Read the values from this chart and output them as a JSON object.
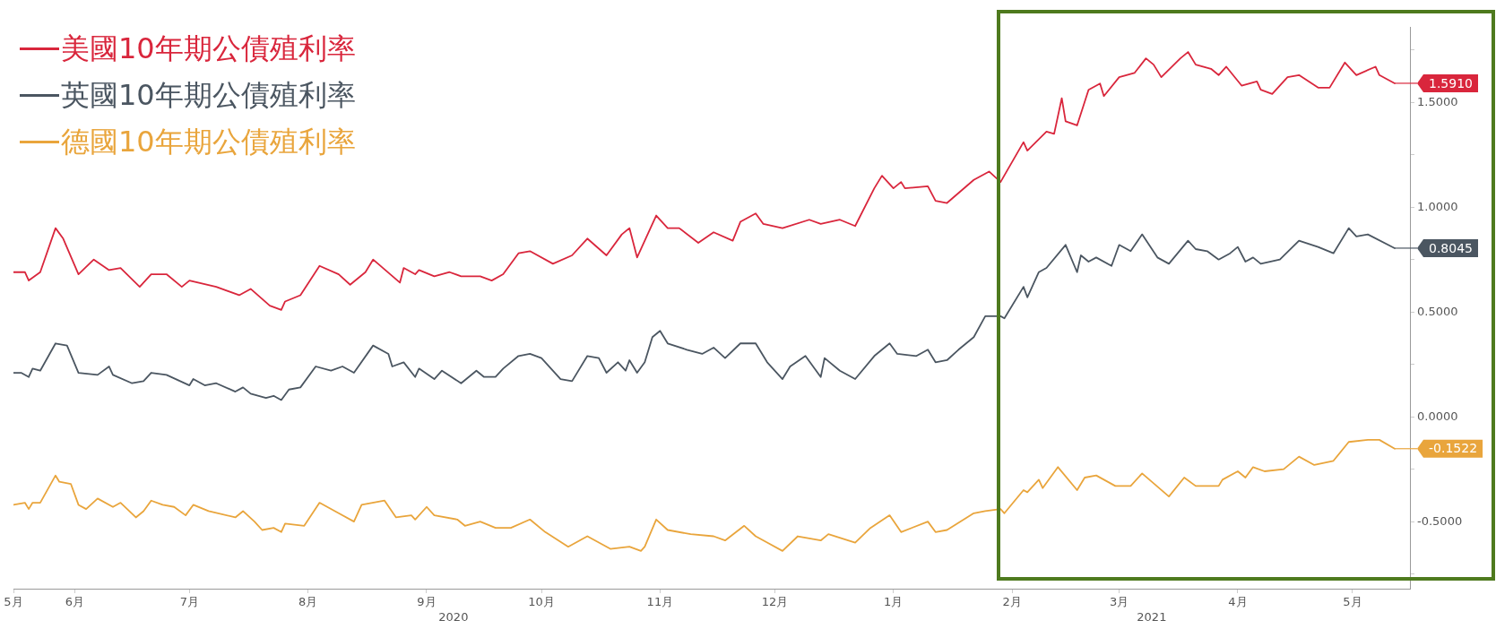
{
  "chart_data": {
    "type": "line",
    "legend": "top left",
    "marker": "none",
    "line_style": "solid",
    "xlim": [
      "2020-05-16",
      "2021-05-16"
    ],
    "xticks": [
      {
        "value": "2020-05-16",
        "label": "5月"
      },
      {
        "value": "2020-06-01",
        "label": "6月"
      },
      {
        "value": "2020-07-01",
        "label": "7月"
      },
      {
        "value": "2020-08-01",
        "label": "8月"
      },
      {
        "value": "2020-09-01",
        "label": "9月"
      },
      {
        "value": "2020-10-01",
        "label": "10月"
      },
      {
        "value": "2020-11-01",
        "label": "11月"
      },
      {
        "value": "2020-12-01",
        "label": "12月"
      },
      {
        "value": "2021-01-01",
        "label": "1月"
      },
      {
        "value": "2021-02-01",
        "label": "2月"
      },
      {
        "value": "2021-03-01",
        "label": "3月"
      },
      {
        "value": "2021-04-01",
        "label": "4月"
      },
      {
        "value": "2021-05-01",
        "label": "5月"
      }
    ],
    "ylim": [
      -0.82,
      1.86
    ],
    "yticks": [
      {
        "value": -0.75,
        "label": null
      },
      {
        "value": -0.5,
        "label": "-0.5000"
      },
      {
        "value": -0.25,
        "label": null
      },
      {
        "value": 0,
        "label": "0.0000"
      },
      {
        "value": 0.25,
        "label": null
      },
      {
        "value": 0.5,
        "label": "0.5000"
      },
      {
        "value": 0.75,
        "label": null
      },
      {
        "value": 1,
        "label": "1.0000"
      },
      {
        "value": 1.25,
        "label": null
      },
      {
        "value": 1.5,
        "label": "1.5000"
      },
      {
        "value": 1.75,
        "label": null
      }
    ],
    "annotations": [
      "2020",
      "2021"
    ],
    "series": [
      {
        "name": "美國10年期公債殖利率",
        "color": "#d9263c",
        "x": [
          "2020-05-16",
          "2020-05-19",
          "2020-05-20",
          "2020-05-23",
          "2020-05-27",
          "2020-05-29",
          "2020-06-02",
          "2020-06-06",
          "2020-06-10",
          "2020-06-13",
          "2020-06-18",
          "2020-06-21",
          "2020-06-25",
          "2020-06-29",
          "2020-07-01",
          "2020-07-08",
          "2020-07-14",
          "2020-07-17",
          "2020-07-22",
          "2020-07-25",
          "2020-07-26",
          "2020-07-30",
          "2020-08-04",
          "2020-08-09",
          "2020-08-12",
          "2020-08-16",
          "2020-08-18",
          "2020-08-25",
          "2020-08-26",
          "2020-08-29",
          "2020-08-30",
          "2020-09-03",
          "2020-09-07",
          "2020-09-10",
          "2020-09-15",
          "2020-09-18",
          "2020-09-21",
          "2020-09-25",
          "2020-09-28",
          "2020-10-04",
          "2020-10-09",
          "2020-10-13",
          "2020-10-18",
          "2020-10-22",
          "2020-10-24",
          "2020-10-26",
          "2020-10-31",
          "2020-11-03",
          "2020-11-06",
          "2020-11-11",
          "2020-11-15",
          "2020-11-20",
          "2020-11-22",
          "2020-11-26",
          "2020-11-28",
          "2020-12-03",
          "2020-12-10",
          "2020-12-13",
          "2020-12-18",
          "2020-12-22",
          "2020-12-27",
          "2020-12-29",
          "2021-01-01",
          "2021-01-03",
          "2021-01-04",
          "2021-01-10",
          "2021-01-12",
          "2021-01-15",
          "2021-01-22",
          "2021-01-26",
          "2021-01-29",
          "2021-02-04",
          "2021-02-05",
          "2021-02-10",
          "2021-02-12",
          "2021-02-14",
          "2021-02-15",
          "2021-02-18",
          "2021-02-21",
          "2021-02-24",
          "2021-02-25",
          "2021-03-01",
          "2021-03-05",
          "2021-03-08",
          "2021-03-10",
          "2021-03-12",
          "2021-03-17",
          "2021-03-19",
          "2021-03-21",
          "2021-03-25",
          "2021-03-27",
          "2021-03-29",
          "2021-04-02",
          "2021-04-06",
          "2021-04-07",
          "2021-04-10",
          "2021-04-14",
          "2021-04-17",
          "2021-04-22",
          "2021-04-25",
          "2021-04-29",
          "2021-05-02",
          "2021-05-07",
          "2021-05-08",
          "2021-05-12"
        ],
        "values": [
          0.69,
          0.69,
          0.65,
          0.69,
          0.9,
          0.85,
          0.68,
          0.75,
          0.7,
          0.71,
          0.62,
          0.68,
          0.68,
          0.62,
          0.65,
          0.62,
          0.58,
          0.61,
          0.53,
          0.51,
          0.55,
          0.58,
          0.72,
          0.68,
          0.63,
          0.69,
          0.75,
          0.64,
          0.71,
          0.68,
          0.7,
          0.67,
          0.69,
          0.67,
          0.67,
          0.65,
          0.68,
          0.78,
          0.79,
          0.73,
          0.77,
          0.85,
          0.77,
          0.87,
          0.9,
          0.76,
          0.96,
          0.9,
          0.9,
          0.83,
          0.88,
          0.84,
          0.93,
          0.97,
          0.92,
          0.9,
          0.94,
          0.92,
          0.94,
          0.91,
          1.09,
          1.15,
          1.09,
          1.12,
          1.09,
          1.1,
          1.03,
          1.02,
          1.13,
          1.17,
          1.12,
          1.31,
          1.27,
          1.36,
          1.35,
          1.52,
          1.41,
          1.39,
          1.56,
          1.59,
          1.53,
          1.62,
          1.64,
          1.71,
          1.68,
          1.62,
          1.71,
          1.74,
          1.68,
          1.66,
          1.63,
          1.67,
          1.58,
          1.6,
          1.56,
          1.54,
          1.62,
          1.63,
          1.57,
          1.57,
          1.69,
          1.63,
          1.67,
          1.63,
          1.591
        ],
        "value_labels": [
          null,
          null,
          null,
          null,
          null,
          null,
          null,
          null,
          null,
          null,
          null,
          null,
          null,
          null,
          null,
          null,
          null,
          null,
          null,
          null,
          null,
          null,
          null,
          null,
          null,
          null,
          null,
          null,
          null,
          null,
          null,
          null,
          null,
          null,
          null,
          null,
          null,
          null,
          null,
          null,
          null,
          null,
          null,
          null,
          null,
          null,
          null,
          null,
          null,
          null,
          null,
          null,
          null,
          null,
          null,
          null,
          null,
          null,
          null,
          null,
          null,
          null,
          null,
          null,
          null,
          null,
          null,
          null,
          null,
          null,
          null,
          null,
          null,
          null,
          null,
          null,
          null,
          null,
          null,
          null,
          null,
          null,
          null,
          null,
          null,
          null,
          null,
          null,
          null,
          null,
          null,
          null,
          null,
          null,
          null,
          null,
          null,
          null,
          null,
          null,
          null,
          null,
          null,
          null,
          "1.5910"
        ]
      },
      {
        "name": "英國10年期公債殖利率",
        "color": "#4b5661",
        "x": [
          "2020-05-16",
          "2020-05-18",
          "2020-05-20",
          "2020-05-21",
          "2020-05-23",
          "2020-05-27",
          "2020-05-30",
          "2020-06-02",
          "2020-06-07",
          "2020-06-10",
          "2020-06-11",
          "2020-06-16",
          "2020-06-19",
          "2020-06-21",
          "2020-06-25",
          "2020-07-01",
          "2020-07-02",
          "2020-07-05",
          "2020-07-08",
          "2020-07-13",
          "2020-07-15",
          "2020-07-17",
          "2020-07-21",
          "2020-07-23",
          "2020-07-25",
          "2020-07-27",
          "2020-07-30",
          "2020-08-03",
          "2020-08-07",
          "2020-08-10",
          "2020-08-13",
          "2020-08-18",
          "2020-08-22",
          "2020-08-23",
          "2020-08-26",
          "2020-08-29",
          "2020-08-30",
          "2020-09-03",
          "2020-09-05",
          "2020-09-10",
          "2020-09-14",
          "2020-09-16",
          "2020-09-19",
          "2020-09-21",
          "2020-09-25",
          "2020-09-28",
          "2020-10-01",
          "2020-10-06",
          "2020-10-09",
          "2020-10-13",
          "2020-10-16",
          "2020-10-18",
          "2020-10-21",
          "2020-10-23",
          "2020-10-24",
          "2020-10-26",
          "2020-10-28",
          "2020-10-30",
          "2020-11-01",
          "2020-11-03",
          "2020-11-08",
          "2020-11-12",
          "2020-11-15",
          "2020-11-18",
          "2020-11-22",
          "2020-11-26",
          "2020-11-29",
          "2020-12-03",
          "2020-12-05",
          "2020-12-09",
          "2020-12-13",
          "2020-12-14",
          "2020-12-18",
          "2020-12-22",
          "2020-12-27",
          "2020-12-31",
          "2021-01-02",
          "2021-01-07",
          "2021-01-10",
          "2021-01-12",
          "2021-01-15",
          "2021-01-18",
          "2021-01-22",
          "2021-01-25",
          "2021-01-29",
          "2021-01-30",
          "2021-02-04",
          "2021-02-05",
          "2021-02-08",
          "2021-02-10",
          "2021-02-15",
          "2021-02-18",
          "2021-02-19",
          "2021-02-21",
          "2021-02-23",
          "2021-02-27",
          "2021-03-01",
          "2021-03-04",
          "2021-03-07",
          "2021-03-11",
          "2021-03-14",
          "2021-03-19",
          "2021-03-21",
          "2021-03-24",
          "2021-03-27",
          "2021-03-30",
          "2021-04-01",
          "2021-04-03",
          "2021-04-05",
          "2021-04-07",
          "2021-04-12",
          "2021-04-17",
          "2021-04-22",
          "2021-04-26",
          "2021-04-30",
          "2021-05-02",
          "2021-05-05",
          "2021-05-12"
        ],
        "values": [
          0.21,
          0.21,
          0.19,
          0.23,
          0.22,
          0.35,
          0.34,
          0.21,
          0.2,
          0.24,
          0.2,
          0.16,
          0.17,
          0.21,
          0.2,
          0.15,
          0.18,
          0.15,
          0.16,
          0.12,
          0.14,
          0.11,
          0.09,
          0.1,
          0.08,
          0.13,
          0.14,
          0.24,
          0.22,
          0.24,
          0.21,
          0.34,
          0.3,
          0.24,
          0.26,
          0.19,
          0.23,
          0.18,
          0.22,
          0.16,
          0.22,
          0.19,
          0.19,
          0.23,
          0.29,
          0.3,
          0.28,
          0.18,
          0.17,
          0.29,
          0.28,
          0.21,
          0.26,
          0.22,
          0.27,
          0.21,
          0.26,
          0.38,
          0.41,
          0.35,
          0.32,
          0.3,
          0.33,
          0.28,
          0.35,
          0.35,
          0.26,
          0.18,
          0.24,
          0.29,
          0.19,
          0.28,
          0.22,
          0.18,
          0.29,
          0.35,
          0.3,
          0.29,
          0.32,
          0.26,
          0.27,
          0.32,
          0.38,
          0.48,
          0.48,
          0.47,
          0.62,
          0.57,
          0.69,
          0.71,
          0.82,
          0.69,
          0.77,
          0.74,
          0.76,
          0.72,
          0.82,
          0.79,
          0.87,
          0.76,
          0.73,
          0.84,
          0.8,
          0.79,
          0.75,
          0.78,
          0.81,
          0.74,
          0.76,
          0.73,
          0.75,
          0.84,
          0.81,
          0.78,
          0.9,
          0.86,
          0.87,
          0.8045
        ],
        "value_labels": [
          null,
          null,
          null,
          null,
          null,
          null,
          null,
          null,
          null,
          null,
          null,
          null,
          null,
          null,
          null,
          null,
          null,
          null,
          null,
          null,
          null,
          null,
          null,
          null,
          null,
          null,
          null,
          null,
          null,
          null,
          null,
          null,
          null,
          null,
          null,
          null,
          null,
          null,
          null,
          null,
          null,
          null,
          null,
          null,
          null,
          null,
          null,
          null,
          null,
          null,
          null,
          null,
          null,
          null,
          null,
          null,
          null,
          null,
          null,
          null,
          null,
          null,
          null,
          null,
          null,
          null,
          null,
          null,
          null,
          null,
          null,
          null,
          null,
          null,
          null,
          null,
          null,
          null,
          null,
          null,
          null,
          null,
          null,
          null,
          null,
          null,
          null,
          null,
          null,
          null,
          null,
          null,
          null,
          null,
          null,
          null,
          null,
          null,
          null,
          null,
          null,
          null,
          null,
          null,
          null,
          null,
          null,
          null,
          null,
          null,
          null,
          null,
          null,
          null,
          null,
          null,
          null,
          "0.8045"
        ]
      },
      {
        "name": "德國10年期公債殖利率",
        "color": "#e9a53c",
        "x": [
          "2020-05-16",
          "2020-05-19",
          "2020-05-20",
          "2020-05-21",
          "2020-05-23",
          "2020-05-27",
          "2020-05-28",
          "2020-05-31",
          "2020-06-02",
          "2020-06-04",
          "2020-06-07",
          "2020-06-11",
          "2020-06-13",
          "2020-06-17",
          "2020-06-19",
          "2020-06-21",
          "2020-06-24",
          "2020-06-27",
          "2020-06-30",
          "2020-07-02",
          "2020-07-06",
          "2020-07-13",
          "2020-07-15",
          "2020-07-18",
          "2020-07-20",
          "2020-07-23",
          "2020-07-25",
          "2020-07-26",
          "2020-07-31",
          "2020-08-04",
          "2020-08-09",
          "2020-08-13",
          "2020-08-15",
          "2020-08-21",
          "2020-08-24",
          "2020-08-28",
          "2020-08-29",
          "2020-09-01",
          "2020-09-03",
          "2020-09-09",
          "2020-09-11",
          "2020-09-15",
          "2020-09-19",
          "2020-09-23",
          "2020-09-28",
          "2020-10-02",
          "2020-10-08",
          "2020-10-13",
          "2020-10-19",
          "2020-10-24",
          "2020-10-27",
          "2020-10-28",
          "2020-10-31",
          "2020-11-03",
          "2020-11-09",
          "2020-11-15",
          "2020-11-18",
          "2020-11-23",
          "2020-11-26",
          "2020-11-29",
          "2020-12-03",
          "2020-12-07",
          "2020-12-13",
          "2020-12-15",
          "2020-12-22",
          "2020-12-26",
          "2020-12-31",
          "2021-01-03",
          "2021-01-10",
          "2021-01-12",
          "2021-01-15",
          "2021-01-22",
          "2021-01-25",
          "2021-01-29",
          "2021-01-30",
          "2021-02-04",
          "2021-02-05",
          "2021-02-08",
          "2021-02-09",
          "2021-02-13",
          "2021-02-18",
          "2021-02-20",
          "2021-02-23",
          "2021-02-28",
          "2021-03-04",
          "2021-03-07",
          "2021-03-14",
          "2021-03-18",
          "2021-03-21",
          "2021-03-27",
          "2021-03-28",
          "2021-04-01",
          "2021-04-03",
          "2021-04-05",
          "2021-04-08",
          "2021-04-13",
          "2021-04-17",
          "2021-04-21",
          "2021-04-26",
          "2021-04-30",
          "2021-05-05",
          "2021-05-08",
          "2021-05-12"
        ],
        "values": [
          -0.42,
          -0.41,
          -0.44,
          -0.41,
          -0.41,
          -0.28,
          -0.31,
          -0.32,
          -0.42,
          -0.44,
          -0.39,
          -0.43,
          -0.41,
          -0.48,
          -0.45,
          -0.4,
          -0.42,
          -0.43,
          -0.47,
          -0.42,
          -0.45,
          -0.48,
          -0.45,
          -0.5,
          -0.54,
          -0.53,
          -0.55,
          -0.51,
          -0.52,
          -0.41,
          -0.46,
          -0.5,
          -0.42,
          -0.4,
          -0.48,
          -0.47,
          -0.49,
          -0.43,
          -0.47,
          -0.49,
          -0.52,
          -0.5,
          -0.53,
          -0.53,
          -0.49,
          -0.55,
          -0.62,
          -0.57,
          -0.63,
          -0.62,
          -0.64,
          -0.62,
          -0.49,
          -0.54,
          -0.56,
          -0.57,
          -0.59,
          -0.52,
          -0.57,
          -0.6,
          -0.64,
          -0.57,
          -0.59,
          -0.56,
          -0.6,
          -0.53,
          -0.47,
          -0.55,
          -0.5,
          -0.55,
          -0.54,
          -0.46,
          -0.45,
          -0.44,
          -0.46,
          -0.35,
          -0.36,
          -0.3,
          -0.34,
          -0.24,
          -0.35,
          -0.29,
          -0.28,
          -0.33,
          -0.33,
          -0.27,
          -0.38,
          -0.29,
          -0.33,
          -0.33,
          -0.3,
          -0.26,
          -0.29,
          -0.24,
          -0.26,
          -0.25,
          -0.19,
          -0.23,
          -0.21,
          -0.12,
          -0.11,
          -0.11,
          -0.1522
        ],
        "value_labels": [
          null,
          null,
          null,
          null,
          null,
          null,
          null,
          null,
          null,
          null,
          null,
          null,
          null,
          null,
          null,
          null,
          null,
          null,
          null,
          null,
          null,
          null,
          null,
          null,
          null,
          null,
          null,
          null,
          null,
          null,
          null,
          null,
          null,
          null,
          null,
          null,
          null,
          null,
          null,
          null,
          null,
          null,
          null,
          null,
          null,
          null,
          null,
          null,
          null,
          null,
          null,
          null,
          null,
          null,
          null,
          null,
          null,
          null,
          null,
          null,
          null,
          null,
          null,
          null,
          null,
          null,
          null,
          null,
          null,
          null,
          null,
          null,
          null,
          null,
          null,
          null,
          null,
          null,
          null,
          null,
          null,
          null,
          null,
          null,
          null,
          null,
          null,
          null,
          null,
          null,
          null,
          null,
          null,
          null,
          null,
          null,
          null,
          null,
          null,
          null,
          null,
          null,
          "-0.1522"
        ]
      }
    ]
  }
}
